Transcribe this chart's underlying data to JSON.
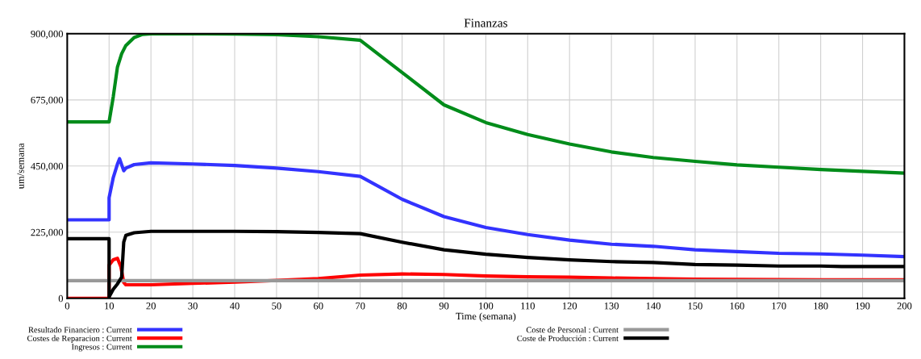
{
  "chart_data": {
    "type": "line",
    "title": "Finanzas",
    "xlabel": "Time (semana)",
    "ylabel": "um/semana",
    "xlim": [
      0,
      200
    ],
    "xticks": [
      0,
      10,
      20,
      30,
      40,
      50,
      60,
      70,
      80,
      90,
      100,
      110,
      120,
      130,
      140,
      150,
      160,
      170,
      180,
      190,
      200
    ],
    "ylim": [
      0,
      900000
    ],
    "yticks": [
      0,
      {
        "value": 225000,
        "label": "225,000"
      },
      {
        "value": 450000,
        "label": "450,000"
      },
      {
        "value": 675000,
        "label": "675,000"
      },
      {
        "value": 900000,
        "label": "900,000"
      }
    ],
    "grid": true,
    "legend": "bottom",
    "marker": "none",
    "line_style": "solid",
    "series": [
      {
        "name": "Resultado Financiero : Current",
        "color": "#3333ff",
        "x": [
          0,
          10,
          10,
          11,
          12,
          12.5,
          13.5,
          14,
          16,
          20,
          30,
          40,
          50,
          60,
          70,
          80,
          90,
          100,
          110,
          120,
          130,
          140,
          150,
          160,
          170,
          180,
          190,
          200
        ],
        "values": [
          267000,
          267000,
          342000,
          411000,
          457000,
          475000,
          434000,
          443000,
          455000,
          461000,
          457000,
          452000,
          443000,
          431000,
          415000,
          337000,
          278000,
          241000,
          217000,
          198000,
          184000,
          177000,
          165000,
          159000,
          153000,
          151000,
          147000,
          142000
        ]
      },
      {
        "name": "Costes de Reparacion : Current",
        "color": "#ff0000",
        "x": [
          0,
          10,
          10,
          11,
          12,
          12.8,
          13.5,
          14,
          20,
          30,
          40,
          50,
          60,
          70,
          80,
          90,
          100,
          110,
          120,
          130,
          140,
          150,
          180,
          200
        ],
        "values": [
          0,
          0,
          113000,
          131000,
          136000,
          108000,
          54000,
          46000,
          46000,
          51000,
          55000,
          61000,
          67000,
          79000,
          83000,
          81000,
          76000,
          73000,
          72000,
          69000,
          67000,
          65000,
          63000,
          63000
        ]
      },
      {
        "name": "Ingresos : Current",
        "color": "#008c1a",
        "x": [
          0,
          10,
          11,
          12,
          13,
          14,
          16,
          18,
          20,
          30,
          40,
          50,
          60,
          70,
          80,
          90,
          100,
          110,
          120,
          130,
          140,
          150,
          160,
          170,
          180,
          190,
          200
        ],
        "values": [
          600000,
          600000,
          686000,
          787000,
          832000,
          860000,
          887000,
          898000,
          900000,
          900000,
          899000,
          897000,
          890000,
          878000,
          768000,
          658000,
          598000,
          557000,
          525000,
          498000,
          479000,
          466000,
          454000,
          446000,
          438000,
          432000,
          426000
        ]
      },
      {
        "name": "Coste de Personal : Current",
        "color": "#999999",
        "x": [
          0,
          200
        ],
        "values": [
          60000,
          60000
        ]
      },
      {
        "name": "Coste de Producción : Current",
        "color": "#000000",
        "x": [
          0,
          10,
          10,
          11,
          12,
          13,
          13.5,
          14,
          16,
          20,
          30,
          40,
          50,
          60,
          70,
          80,
          90,
          100,
          110,
          120,
          130,
          140,
          150,
          160,
          170,
          180,
          185,
          200
        ],
        "values": [
          203000,
          203000,
          5000,
          31000,
          49000,
          72000,
          191000,
          214000,
          223000,
          228000,
          228000,
          228000,
          227000,
          224000,
          220000,
          191000,
          165000,
          150000,
          139000,
          131000,
          125000,
          122000,
          115000,
          113000,
          110000,
          110000,
          108000,
          108000
        ]
      }
    ]
  }
}
